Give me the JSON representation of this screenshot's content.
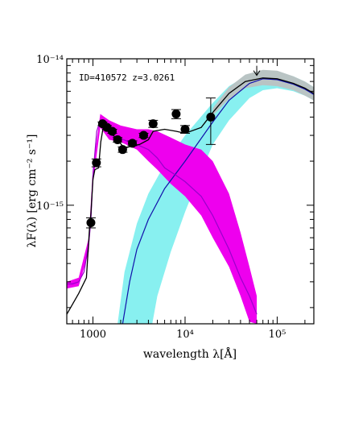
{
  "chart_data": {
    "type": "scatter",
    "annotation": "ID=410572 z=3.0261",
    "xlabel": "wavelength λ[Å]",
    "ylabel": "λF(λ) [erg cm⁻² s⁻¹]",
    "xscale": "log",
    "yscale": "log",
    "xlim": [
      520,
      250000
    ],
    "ylim": [
      1.55e-16,
      1e-14
    ],
    "xticks": [
      {
        "value": 1000,
        "label": "1000"
      },
      {
        "value": 10000,
        "label": "10⁴"
      },
      {
        "value": 100000,
        "label": "10⁵"
      }
    ],
    "yticks": [
      {
        "value": 1e-15,
        "label": "10⁻¹⁵"
      },
      {
        "value": 1e-14,
        "label": "10⁻¹⁴"
      }
    ],
    "colors": {
      "points": "#000000",
      "total_model": "#000000",
      "stellar_band": "#ee00ee",
      "stellar_line": "#9900cc",
      "dust_band": "#88f0f0",
      "dust_line": "#1111aa",
      "uncertainty_band": "#b9c4c4"
    },
    "points": [
      {
        "x": 950,
        "y": 7.6e-16,
        "yerr_lo": 6e-17,
        "yerr_hi": 6e-17
      },
      {
        "x": 1090,
        "y": 1.95e-15,
        "yerr_lo": 1.2e-16,
        "yerr_hi": 1.2e-16
      },
      {
        "x": 1270,
        "y": 3.6e-15,
        "yerr_lo": 1e-16,
        "yerr_hi": 1e-16
      },
      {
        "x": 1420,
        "y": 3.4e-15,
        "yerr_lo": 1e-16,
        "yerr_hi": 1e-16
      },
      {
        "x": 1620,
        "y": 3.2e-15,
        "yerr_lo": 1e-16,
        "yerr_hi": 1e-16
      },
      {
        "x": 1850,
        "y": 2.8e-15,
        "yerr_lo": 1e-16,
        "yerr_hi": 1e-16
      },
      {
        "x": 2100,
        "y": 2.4e-15,
        "yerr_lo": 1e-16,
        "yerr_hi": 1e-16
      },
      {
        "x": 2680,
        "y": 2.65e-15,
        "yerr_lo": 1e-16,
        "yerr_hi": 1e-16
      },
      {
        "x": 3550,
        "y": 3e-15,
        "yerr_lo": 1e-16,
        "yerr_hi": 1e-16
      },
      {
        "x": 4500,
        "y": 3.6e-15,
        "yerr_lo": 2e-16,
        "yerr_hi": 2e-16
      },
      {
        "x": 8000,
        "y": 4.2e-15,
        "yerr_lo": 3e-16,
        "yerr_hi": 3e-16
      },
      {
        "x": 10000,
        "y": 3.3e-15,
        "yerr_lo": 2e-16,
        "yerr_hi": 2e-16
      },
      {
        "x": 19000,
        "y": 4e-15,
        "yerr_lo": 1.4e-15,
        "yerr_hi": 1.4e-15
      }
    ],
    "upper_limit": {
      "x": 60000,
      "y": 7.7e-15
    },
    "total_model": [
      [
        520,
        1.8e-16
      ],
      [
        700,
        2.5e-16
      ],
      [
        850,
        3.2e-16
      ],
      [
        920,
        7.2e-16
      ],
      [
        950,
        8.8e-16
      ],
      [
        1000,
        1.5e-15
      ],
      [
        1050,
        1.75e-15
      ],
      [
        1150,
        1.8e-15
      ],
      [
        1215,
        2.7e-15
      ],
      [
        1300,
        3.5e-15
      ],
      [
        1500,
        3.2e-15
      ],
      [
        1800,
        2.85e-15
      ],
      [
        2200,
        2.45e-15
      ],
      [
        2700,
        2.55e-15
      ],
      [
        3200,
        2.6e-15
      ],
      [
        4000,
        2.8e-15
      ],
      [
        4500,
        3.2e-15
      ],
      [
        6000,
        3.3e-15
      ],
      [
        8000,
        3.2e-15
      ],
      [
        10000,
        3.1e-15
      ],
      [
        15000,
        3.4e-15
      ],
      [
        20000,
        4.3e-15
      ],
      [
        30000,
        5.8e-15
      ],
      [
        45000,
        7e-15
      ],
      [
        70000,
        7.4e-15
      ],
      [
        100000,
        7.3e-15
      ],
      [
        150000,
        6.8e-15
      ],
      [
        200000,
        6.3e-15
      ],
      [
        250000,
        5.8e-15
      ]
    ],
    "uncertainty_band": {
      "upper": [
        [
          20000,
          4.6e-15
        ],
        [
          30000,
          6.4e-15
        ],
        [
          45000,
          7.8e-15
        ],
        [
          70000,
          8.4e-15
        ],
        [
          100000,
          8.3e-15
        ],
        [
          150000,
          7.6e-15
        ],
        [
          200000,
          7e-15
        ],
        [
          250000,
          6.4e-15
        ]
      ],
      "lower": [
        [
          20000,
          4.1e-15
        ],
        [
          30000,
          5.3e-15
        ],
        [
          45000,
          6.3e-15
        ],
        [
          70000,
          6.6e-15
        ],
        [
          100000,
          6.5e-15
        ],
        [
          150000,
          6.1e-15
        ],
        [
          200000,
          5.6e-15
        ],
        [
          250000,
          5.2e-15
        ]
      ]
    },
    "stellar_line": [
      [
        520,
        2.9e-16
      ],
      [
        600,
        2.9e-16
      ],
      [
        700,
        3e-16
      ],
      [
        800,
        3.5e-16
      ],
      [
        900,
        5.5e-16
      ],
      [
        950,
        8e-16
      ],
      [
        1000,
        1.6e-15
      ],
      [
        1100,
        3.2e-15
      ],
      [
        1200,
        3.8e-15
      ],
      [
        1300,
        3.4e-15
      ],
      [
        1600,
        3e-15
      ],
      [
        2000,
        2.85e-15
      ],
      [
        2500,
        2.7e-15
      ],
      [
        3000,
        2.6e-15
      ],
      [
        4000,
        2.4e-15
      ],
      [
        5000,
        2.1e-15
      ],
      [
        6000,
        1.8e-15
      ],
      [
        8000,
        1.6e-15
      ],
      [
        10000,
        1.45e-15
      ],
      [
        15000,
        1.15e-15
      ],
      [
        20000,
        8.5e-16
      ],
      [
        30000,
        5e-16
      ],
      [
        40000,
        3.2e-16
      ],
      [
        50000,
        2.4e-16
      ],
      [
        60000,
        1.8e-16
      ]
    ],
    "stellar_band": {
      "upper": [
        [
          520,
          3e-16
        ],
        [
          700,
          3.2e-16
        ],
        [
          900,
          6e-16
        ],
        [
          1000,
          1.8e-15
        ],
        [
          1200,
          4.2e-15
        ],
        [
          1500,
          3.8e-15
        ],
        [
          2000,
          3.5e-15
        ],
        [
          3000,
          3.3e-15
        ],
        [
          4000,
          3.3e-15
        ],
        [
          5000,
          3.2e-15
        ],
        [
          7000,
          2.9e-15
        ],
        [
          10000,
          2.6e-15
        ],
        [
          15000,
          2.4e-15
        ],
        [
          20000,
          2e-15
        ],
        [
          30000,
          1.2e-15
        ],
        [
          40000,
          6.5e-16
        ],
        [
          50000,
          3.8e-16
        ],
        [
          60000,
          2.4e-16
        ]
      ],
      "lower": [
        [
          60000,
          1.55e-16
        ],
        [
          50000,
          1.6e-16
        ],
        [
          40000,
          2.4e-16
        ],
        [
          30000,
          3.8e-16
        ],
        [
          20000,
          6e-16
        ],
        [
          15000,
          8.5e-16
        ],
        [
          10000,
          1.15e-15
        ],
        [
          7000,
          1.4e-15
        ],
        [
          5000,
          1.75e-15
        ],
        [
          4000,
          2e-15
        ],
        [
          3000,
          2.4e-15
        ],
        [
          2000,
          2.7e-15
        ],
        [
          1500,
          2.8e-15
        ],
        [
          1200,
          3.4e-15
        ],
        [
          1000,
          1.4e-15
        ],
        [
          900,
          4.8e-16
        ],
        [
          700,
          2.8e-16
        ],
        [
          520,
          2.7e-16
        ]
      ]
    },
    "dust_line": [
      [
        2100,
        1.55e-16
      ],
      [
        2500,
        3e-16
      ],
      [
        3000,
        5e-16
      ],
      [
        4000,
        8e-16
      ],
      [
        6000,
        1.3e-15
      ],
      [
        10000,
        2e-15
      ],
      [
        20000,
        3.7e-15
      ],
      [
        30000,
        5.2e-15
      ],
      [
        50000,
        6.8e-15
      ],
      [
        70000,
        7.3e-15
      ],
      [
        100000,
        7.2e-15
      ],
      [
        150000,
        6.7e-15
      ],
      [
        200000,
        6.2e-15
      ],
      [
        250000,
        5.7e-15
      ]
    ],
    "dust_band": {
      "upper": [
        [
          1850,
          1.55e-16
        ],
        [
          2200,
          3.5e-16
        ],
        [
          3000,
          7.5e-16
        ],
        [
          4000,
          1.2e-15
        ],
        [
          6000,
          1.9e-15
        ],
        [
          10000,
          3e-15
        ],
        [
          20000,
          5e-15
        ],
        [
          30000,
          6.5e-15
        ],
        [
          50000,
          7.9e-15
        ],
        [
          70000,
          8.3e-15
        ],
        [
          100000,
          8.2e-15
        ],
        [
          150000,
          7.6e-15
        ],
        [
          200000,
          7e-15
        ],
        [
          250000,
          6.4e-15
        ]
      ],
      "lower": [
        [
          250000,
          5.2e-15
        ],
        [
          200000,
          5.6e-15
        ],
        [
          150000,
          6e-15
        ],
        [
          100000,
          6.3e-15
        ],
        [
          70000,
          6.1e-15
        ],
        [
          50000,
          5.4e-15
        ],
        [
          30000,
          3.8e-15
        ],
        [
          20000,
          2.6e-15
        ],
        [
          15000,
          1.7e-15
        ],
        [
          10000,
          9e-16
        ],
        [
          7000,
          4.8e-16
        ],
        [
          5000,
          2.4e-16
        ],
        [
          4400,
          1.55e-16
        ]
      ]
    }
  }
}
